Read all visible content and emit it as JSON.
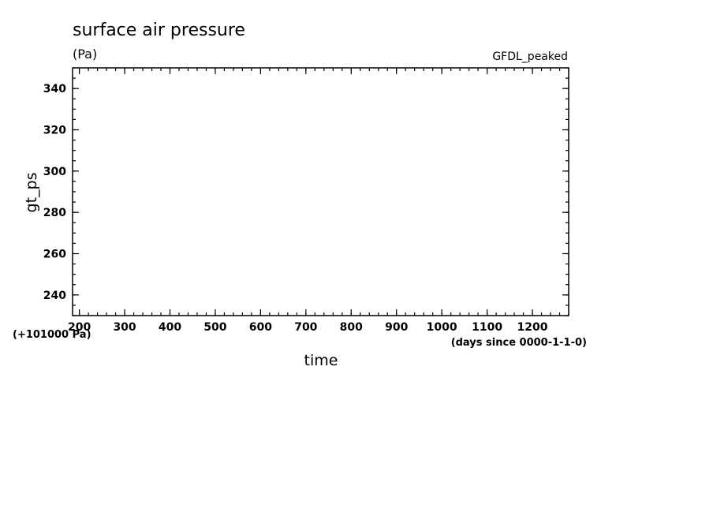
{
  "chart_data": {
    "type": "line",
    "title": "surface air pressure",
    "units": "(Pa)",
    "dataset_label": "GFDL_peaked",
    "xlabel": "time",
    "ylabel": "gt_ps",
    "x_units_note": "(days since 0000-1-1-0)",
    "y_offset_note": "(+101000 Pa)",
    "xlim": [
      185,
      1280
    ],
    "ylim": [
      230,
      350
    ],
    "x_ticks": [
      "200",
      "300",
      "400",
      "500",
      "600",
      "700",
      "800",
      "900",
      "1000",
      "1100",
      "1200"
    ],
    "y_ticks": [
      "240",
      "260",
      "280",
      "300",
      "320",
      "340"
    ],
    "series": []
  }
}
